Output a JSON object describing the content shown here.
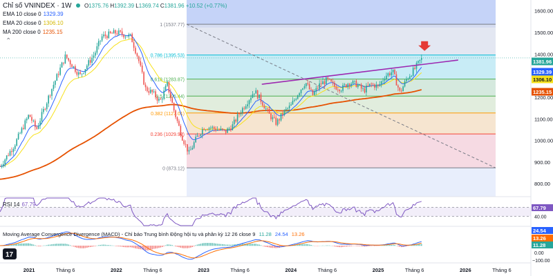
{
  "header": {
    "symbol": "Chỉ số VNINDEX · 1W",
    "open_label": "O",
    "open": "1375.76",
    "high_label": "H",
    "high": "1392.39",
    "low_label": "L",
    "low": "1369.74",
    "close_label": "C",
    "close": "1381.96",
    "change": "+10.52 (+0.77%)"
  },
  "indicators": {
    "ema10": {
      "label": "EMA 10 close 0",
      "value": "1329.39",
      "color": "#2962ff"
    },
    "ema20": {
      "label": "EMA 20 close 0",
      "value": "1306.10",
      "color": "#f7e11b"
    },
    "ma200": {
      "label": "MA 200 close 0",
      "value": "1235.15",
      "color": "#e65100"
    }
  },
  "rsi": {
    "label": "RSI 14",
    "value": "67.79",
    "color": "#7e57c2",
    "levels": [
      "60.00",
      "40.00"
    ],
    "range": [
      20,
      80
    ]
  },
  "macd": {
    "label": "Moving Average Convergence Divergence (MACD) - Chỉ báo Trung bình Động hội tụ và phân kỳ 12 26 close 9",
    "v1": "11.28",
    "v2": "24.54",
    "v3": "13.26",
    "price_axis": [
      "24.54",
      "13.26",
      "11.28",
      "0.00",
      "−100.00"
    ]
  },
  "price_tags": {
    "last": {
      "value": "1381.96",
      "color": "#26a69a"
    },
    "ema10": {
      "value": "1329.39",
      "color": "#2962ff"
    },
    "ema20": {
      "value": "1306.10",
      "color": "#f7e11b"
    },
    "ma200": {
      "value": "1235.15",
      "color": "#e65100"
    }
  },
  "fib": [
    {
      "ratio": "1",
      "label": "1 (1537.77)",
      "price": 1537.77,
      "fill": "#e0e3eb"
    },
    {
      "ratio": "0.786",
      "label": "0.786 (1395.53)",
      "price": 1395.53,
      "fill": "#b2ebf2"
    },
    {
      "ratio": "0.618",
      "label": "0.618 (1283.87)",
      "price": 1283.87,
      "fill": "#c8e6c9"
    },
    {
      "ratio": "0.5",
      "label": "0.5 (1205.44)",
      "price": 1205.44,
      "fill": "#dcedc8"
    },
    {
      "ratio": "0.382",
      "label": "0.382 (1127.01)",
      "price": 1127.01,
      "fill": "#ffe0b2"
    },
    {
      "ratio": "0.236",
      "label": "0.236 (1029.97)",
      "price": 1029.97,
      "fill": "#ffcdd2"
    },
    {
      "ratio": "0",
      "label": "0 (873.12)",
      "price": 873.12,
      "fill": ""
    }
  ],
  "fib_label_colors": [
    "#787b86",
    "#00bcd4",
    "#4caf50",
    "#4caf50",
    "#ff9800",
    "#f44336",
    "#787b86"
  ],
  "chart_data": {
    "type": "candlestick",
    "title": "Chỉ số VNINDEX · 1W",
    "y_axis_ticks": [
      1600,
      1500,
      1400,
      1300,
      1200,
      1100,
      1000,
      900,
      800
    ],
    "y_axis_tick_labels": [
      "1600.00",
      "1500.00",
      "1400.00",
      "1300.00",
      "1200.00",
      "1100.00",
      "1000.00",
      "900.00",
      "800.00"
    ],
    "ylim": [
      740,
      1650
    ],
    "x_axis_labels": [
      "2021",
      "Tháng 6",
      "2022",
      "Tháng 6",
      "2023",
      "Tháng 6",
      "2024",
      "Tháng 6",
      "2025",
      "Tháng 6",
      "2026",
      "Tháng 6"
    ],
    "x_axis_dates": [
      "2021-01",
      "2021-06",
      "2022-01",
      "2022-06",
      "2023-01",
      "2023-06",
      "2024-01",
      "2024-06",
      "2025-01",
      "2025-06",
      "2026-01",
      "2026-06"
    ],
    "xlim": [
      "2020-09",
      "2026-10"
    ],
    "price_path": [
      [
        "2020-09",
        880
      ],
      [
        "2020-11",
        980
      ],
      [
        "2021-01",
        1120
      ],
      [
        "2021-02",
        1050
      ],
      [
        "2021-04",
        1230
      ],
      [
        "2021-06",
        1390
      ],
      [
        "2021-08",
        1300
      ],
      [
        "2021-10",
        1400
      ],
      [
        "2021-11",
        1480
      ],
      [
        "2022-01",
        1500
      ],
      [
        "2022-03",
        1480
      ],
      [
        "2022-04",
        1380
      ],
      [
        "2022-05",
        1240
      ],
      [
        "2022-06",
        1220
      ],
      [
        "2022-07",
        1180
      ],
      [
        "2022-08",
        1260
      ],
      [
        "2022-09",
        1130
      ],
      [
        "2022-10",
        1020
      ],
      [
        "2022-11",
        940
      ],
      [
        "2022-12",
        1010
      ],
      [
        "2023-01",
        1060
      ],
      [
        "2023-02",
        1060
      ],
      [
        "2023-03",
        1050
      ],
      [
        "2023-04",
        1040
      ],
      [
        "2023-05",
        1070
      ],
      [
        "2023-06",
        1130
      ],
      [
        "2023-07",
        1180
      ],
      [
        "2023-08",
        1230
      ],
      [
        "2023-09",
        1180
      ],
      [
        "2023-10",
        1120
      ],
      [
        "2023-11",
        1080
      ],
      [
        "2023-12",
        1130
      ],
      [
        "2024-01",
        1160
      ],
      [
        "2024-02",
        1220
      ],
      [
        "2024-03",
        1270
      ],
      [
        "2024-04",
        1210
      ],
      [
        "2024-05",
        1260
      ],
      [
        "2024-06",
        1280
      ],
      [
        "2024-07",
        1250
      ],
      [
        "2024-08",
        1240
      ],
      [
        "2024-09",
        1270
      ],
      [
        "2024-10",
        1260
      ],
      [
        "2024-11",
        1230
      ],
      [
        "2024-12",
        1260
      ],
      [
        "2025-01",
        1250
      ],
      [
        "2025-02",
        1300
      ],
      [
        "2025-03",
        1320
      ],
      [
        "2025-04",
        1220
      ],
      [
        "2025-05",
        1290
      ],
      [
        "2025-06",
        1330
      ],
      [
        "2025-07",
        1381.96
      ]
    ],
    "series": [
      {
        "name": "EMA 10 close 0",
        "last": 1329.39
      },
      {
        "name": "EMA 20 close 0",
        "last": 1306.1
      },
      {
        "name": "MA 200 close 0",
        "last": 1235.15
      }
    ],
    "rsi_last": 67.79,
    "macd_values": [
      11.28,
      24.54,
      13.26
    ],
    "grid": false,
    "legend_position": "top-left"
  }
}
